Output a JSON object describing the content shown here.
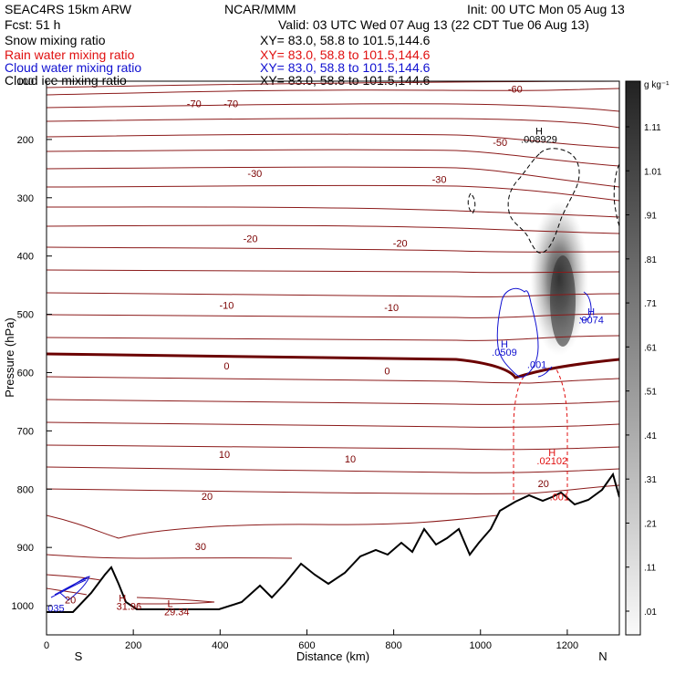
{
  "header": {
    "model": "SEAC4RS 15km ARW",
    "center": "NCAR/MMM",
    "init": "Init: 00 UTC Mon 05 Aug 13",
    "fcst": "Fcst:    51 h",
    "valid": "Valid: 03 UTC Wed 07 Aug 13 (22 CDT Tue 06 Aug 13)"
  },
  "fields": [
    {
      "name": "Snow mixing ratio",
      "xy": "XY=   83.0, 58.8 to 101.5,144.6",
      "color": "#000000"
    },
    {
      "name": "Rain water mixing ratio",
      "xy": "XY=  83.0, 58.8 to 101.5,144.6",
      "color": "#e01010"
    },
    {
      "name": "Cloud water mixing ratio",
      "xy": "XY=  83.0, 58.8 to 101.5,144.6",
      "color": "#1010d0"
    },
    {
      "name": "Cloud ice mixing ratio",
      "xy": "XY=  83.0, 58.8 to 101.5,144.6",
      "color": "#000000"
    }
  ],
  "colorbar": {
    "unit": "g kg⁻¹",
    "labels": [
      "1.11",
      "1.01",
      ".91",
      ".81",
      ".71",
      ".61",
      ".51",
      ".41",
      ".31",
      ".21",
      ".11",
      ".01"
    ]
  },
  "chart_data": {
    "type": "heatmap",
    "title": "",
    "xlabel": "Distance (km)",
    "ylabel": "Pressure (hPa)",
    "xlim": [
      0,
      1320
    ],
    "ylim": [
      1050,
      100
    ],
    "x_ticks": [
      0,
      200,
      400,
      600,
      800,
      1000,
      1200
    ],
    "y_ticks": [
      100,
      200,
      300,
      400,
      500,
      600,
      700,
      800,
      900,
      1000
    ],
    "x_end_labels": {
      "left": "S",
      "right": "N"
    },
    "temperature_contours": [
      {
        "level": -70,
        "labels": [
          {
            "text": "-70",
            "x": 340,
            "p": 138
          },
          {
            "text": "-70",
            "x": 425,
            "p": 138
          }
        ]
      },
      {
        "level": -60,
        "labels": [
          {
            "text": "-60",
            "x": 1080,
            "p": 113
          }
        ]
      },
      {
        "level": -50,
        "labels": [
          {
            "text": "-50",
            "x": 1045,
            "p": 205
          }
        ]
      },
      {
        "level": -30,
        "labels": [
          {
            "text": "-30",
            "x": 480,
            "p": 258
          },
          {
            "text": "-30",
            "x": 905,
            "p": 268
          }
        ]
      },
      {
        "level": -20,
        "labels": [
          {
            "text": "-20",
            "x": 470,
            "p": 370
          },
          {
            "text": "-20",
            "x": 815,
            "p": 378
          }
        ]
      },
      {
        "level": -10,
        "labels": [
          {
            "text": "-10",
            "x": 415,
            "p": 484
          },
          {
            "text": "-10",
            "x": 795,
            "p": 488
          }
        ]
      },
      {
        "level": 0,
        "labels": [
          {
            "text": "0",
            "x": 415,
            "p": 588
          },
          {
            "text": "0",
            "x": 785,
            "p": 597
          }
        ]
      },
      {
        "level": 10,
        "labels": [
          {
            "text": "10",
            "x": 410,
            "p": 740
          },
          {
            "text": "10",
            "x": 700,
            "p": 748
          }
        ]
      },
      {
        "level": 20,
        "labels": [
          {
            "text": "20",
            "x": 370,
            "p": 812
          },
          {
            "text": "20",
            "x": 1145,
            "p": 790
          },
          {
            "text": "20",
            "x": 55,
            "p": 990
          }
        ]
      },
      {
        "level": 30,
        "labels": [
          {
            "text": "30",
            "x": 355,
            "p": 898
          }
        ]
      }
    ],
    "extrema_labels": [
      {
        "text": "H",
        "x": 1135,
        "p": 185,
        "color": "#000000"
      },
      {
        "text": ".008929",
        "x": 1135,
        "p": 199,
        "color": "#000000"
      },
      {
        "text": "H",
        "x": 1055,
        "p": 551,
        "color": "#1010d0"
      },
      {
        "text": ".0509",
        "x": 1055,
        "p": 565,
        "color": "#1010d0"
      },
      {
        "text": ".001",
        "x": 1130,
        "p": 586,
        "color": "#1010d0"
      },
      {
        "text": "H",
        "x": 1255,
        "p": 495,
        "color": "#1010d0"
      },
      {
        "text": ".0074",
        "x": 1255,
        "p": 509,
        "color": "#1010d0"
      },
      {
        "text": "H",
        "x": 1165,
        "p": 737,
        "color": "#e01010"
      },
      {
        "text": ".02102",
        "x": 1165,
        "p": 751,
        "color": "#e01010"
      },
      {
        "text": ".001",
        "x": 1182,
        "p": 813,
        "color": "#e01010"
      },
      {
        "text": "H",
        "x": 175,
        "p": 987,
        "color": "#8b0000"
      },
      {
        "text": "31.96",
        "x": 190,
        "p": 1001,
        "color": "#8b0000"
      },
      {
        "text": "L",
        "x": 285,
        "p": 996,
        "color": "#8b0000"
      },
      {
        "text": "29.34",
        "x": 300,
        "p": 1010,
        "color": "#8b0000"
      },
      {
        "text": "035",
        "x": 22,
        "p": 1004,
        "color": "#1010d0"
      }
    ],
    "shading_peak": {
      "x": 1178,
      "p": 430,
      "value_max": 1.11
    }
  }
}
